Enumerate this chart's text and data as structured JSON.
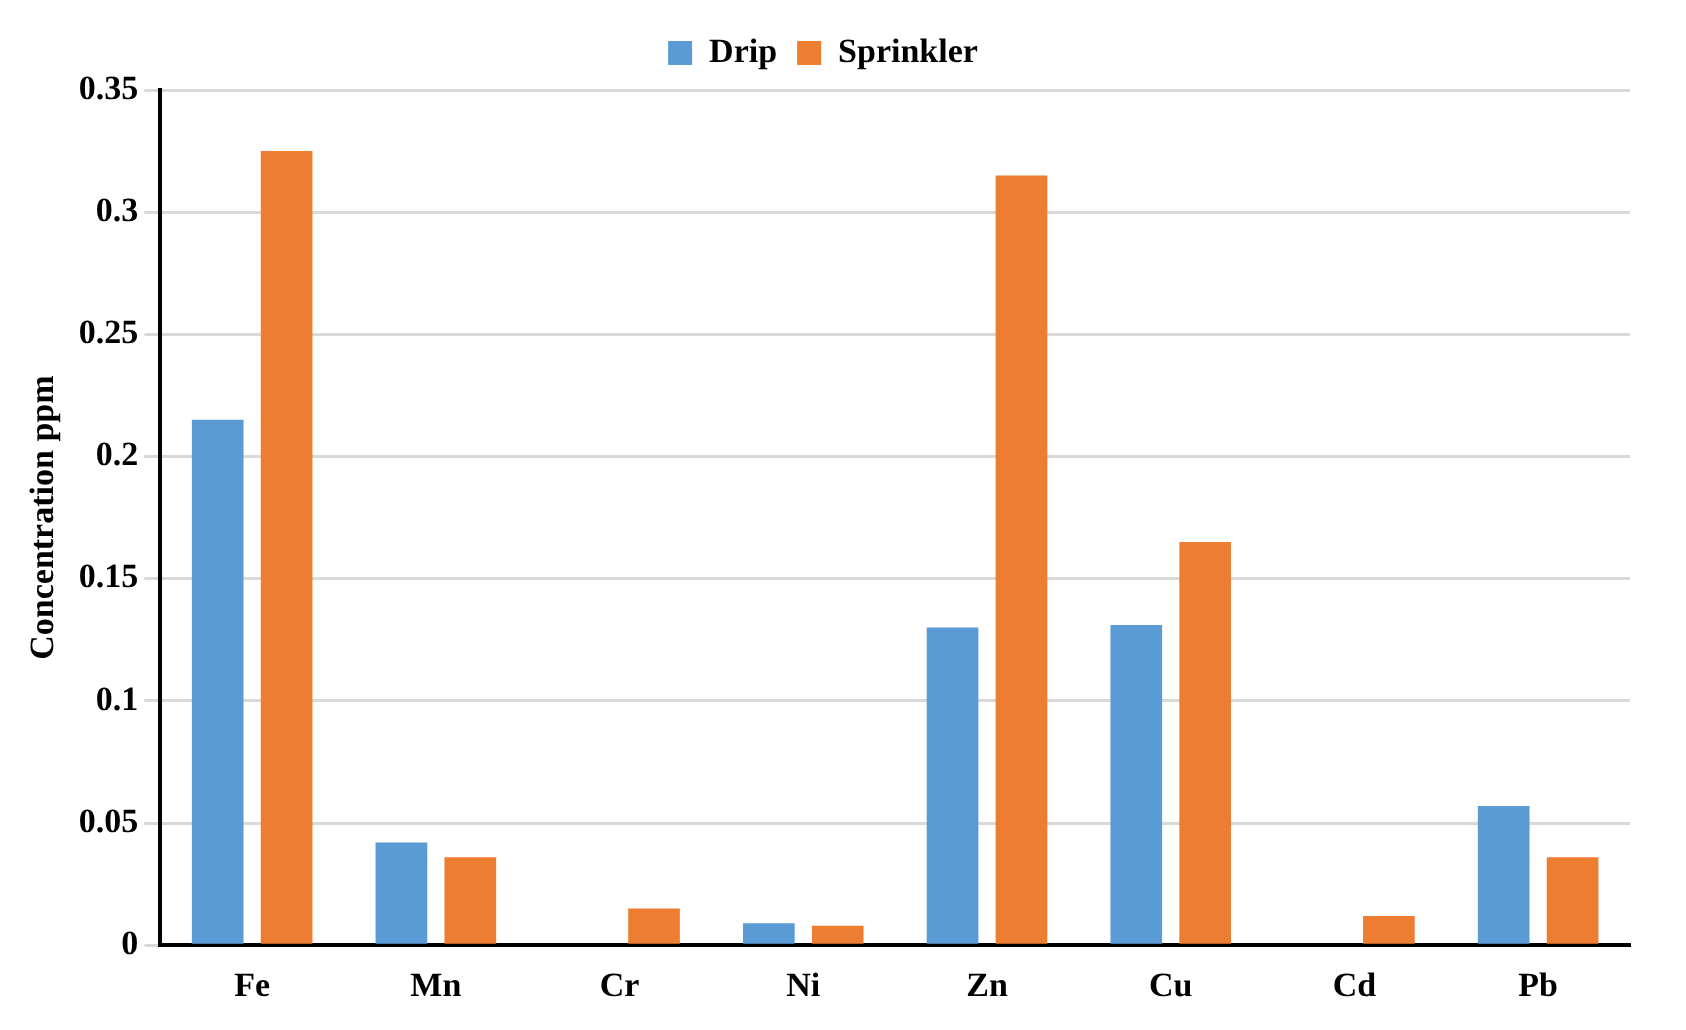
{
  "chart_data": {
    "type": "bar",
    "ylabel": "Concentration ppm",
    "categories": [
      "Fe",
      "Mn",
      "Cr",
      "Ni",
      "Zn",
      "Cu",
      "Cd",
      "Pb"
    ],
    "series": [
      {
        "name": "Drip",
        "color": "#5b9bd5",
        "values": [
          0.215,
          0.042,
          0,
          0.009,
          0.13,
          0.131,
          0,
          0.057
        ]
      },
      {
        "name": "Sprinkler",
        "color": "#ed7d31",
        "values": [
          0.325,
          0.036,
          0.015,
          0.008,
          0.315,
          0.165,
          0.012,
          0.036
        ]
      }
    ],
    "ylim": [
      0,
      0.35
    ],
    "yticks": [
      0,
      0.05,
      0.1,
      0.15,
      0.2,
      0.25,
      0.3,
      0.35
    ],
    "grid": "y",
    "legend": "top"
  }
}
